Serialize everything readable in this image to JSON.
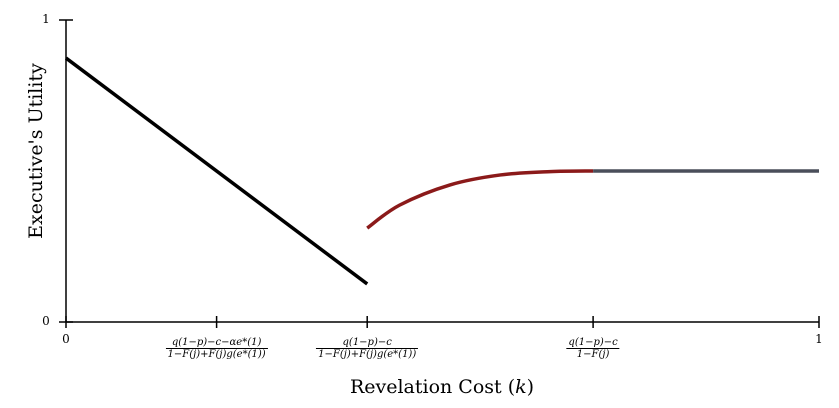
{
  "chart_data": {
    "type": "line",
    "title": "",
    "xlabel": "Revelation Cost (k)",
    "ylabel": "Executive's Utility",
    "xlim": [
      0,
      1
    ],
    "ylim": [
      0,
      1
    ],
    "grid": false,
    "x_ticks": [
      {
        "value": 0,
        "label": "0"
      },
      {
        "value": 0.2,
        "numerator": "q(1−p)−c−αe*(1)",
        "denominator": "1−F(j)+F(j)g(e*(1))"
      },
      {
        "value": 0.4,
        "numerator": "q(1−p)−c",
        "denominator": "1−F(j)+F(j)g(e*(1))"
      },
      {
        "value": 0.7,
        "numerator": "q(1−p)−c",
        "denominator": "1−F(j)"
      },
      {
        "value": 1,
        "label": "1"
      }
    ],
    "y_ticks": [
      {
        "value": 0,
        "label": "0"
      },
      {
        "value": 1,
        "label": "1"
      }
    ],
    "series": [
      {
        "color": "#000000",
        "x": [
          0,
          0.4
        ],
        "y": [
          0.874,
          0.126
        ]
      },
      {
        "color": "#8b1a1a",
        "x": [
          0.4,
          0.443,
          0.51,
          0.577,
          0.643,
          0.7
        ],
        "y": [
          0.311,
          0.387,
          0.454,
          0.487,
          0.498,
          0.5
        ]
      },
      {
        "color": "#4a4e5a",
        "x": [
          0.7,
          1
        ],
        "y": [
          0.5,
          0.5
        ]
      }
    ]
  }
}
